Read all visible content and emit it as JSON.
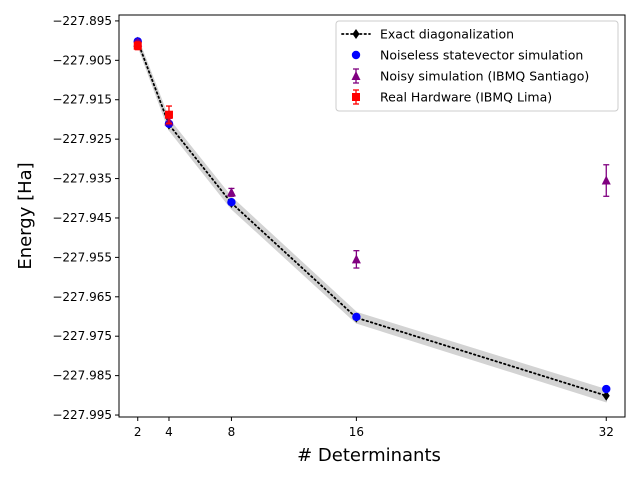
{
  "chart_data": {
    "type": "scatter",
    "title": "",
    "xlabel": "# Determinants",
    "ylabel": "Energy [Ha]",
    "xlim": [
      0.8,
      33.2
    ],
    "ylim": [
      -227.9955,
      -227.8935
    ],
    "xticks": [
      2,
      4,
      8,
      16,
      32
    ],
    "xtick_labels": [
      "2",
      "4",
      "8",
      "16",
      "32"
    ],
    "yticks": [
      -227.895,
      -227.905,
      -227.915,
      -227.925,
      -227.935,
      -227.945,
      -227.955,
      -227.965,
      -227.975,
      -227.985,
      -227.995
    ],
    "ytick_labels": [
      "−227.895",
      "−227.905",
      "−227.915",
      "−227.925",
      "−227.935",
      "−227.945",
      "−227.955",
      "−227.965",
      "−227.975",
      "−227.985",
      "−227.995"
    ],
    "band": {
      "x": [
        2,
        4,
        8,
        16,
        32
      ],
      "lower": [
        -227.9011,
        -227.9226,
        -227.9426,
        -227.9716,
        -227.9916
      ],
      "upper": [
        -227.8995,
        -227.92,
        -227.9398,
        -227.969,
        -227.9886
      ],
      "color": "#d3d3d3"
    },
    "series": [
      {
        "name": "Exact diagonalization",
        "kind": "line-diamond",
        "color": "#000000",
        "x": [
          2,
          4,
          8,
          16,
          32
        ],
        "y": [
          -227.9003,
          -227.9213,
          -227.9412,
          -227.9703,
          -227.9901
        ]
      },
      {
        "name": "Noiseless statevector simulation",
        "kind": "circle",
        "color": "#0000ff",
        "x": [
          2,
          4,
          8,
          16,
          32
        ],
        "y": [
          -227.9002,
          -227.9211,
          -227.941,
          -227.9701,
          -227.9884
        ]
      },
      {
        "name": "Noisy simulation (IBMQ Santiago)",
        "kind": "triangle",
        "color": "#800080",
        "x": [
          2,
          4,
          8,
          16,
          32
        ],
        "y": [
          -227.9005,
          -227.9205,
          -227.9385,
          -227.9555,
          -227.9355
        ],
        "err": [
          0.0006,
          0.0008,
          0.001,
          0.0022,
          0.004
        ]
      },
      {
        "name": "Real Hardware (IBMQ Lima)",
        "kind": "square",
        "color": "#ff0000",
        "x": [
          2,
          4
        ],
        "y": [
          -227.9013,
          -227.9188
        ],
        "err": [
          0.001,
          0.0022
        ]
      }
    ],
    "legend": "top-right",
    "grid": false
  }
}
